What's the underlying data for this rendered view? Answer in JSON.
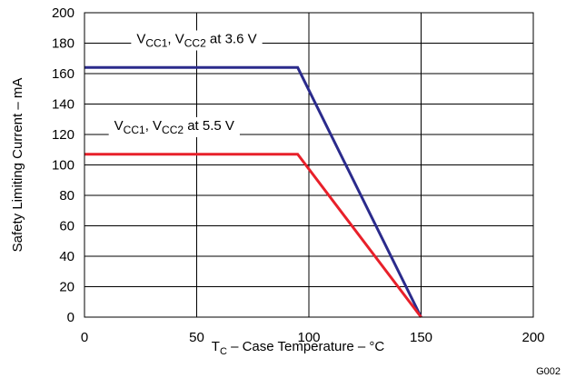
{
  "chart_data": {
    "type": "line",
    "xlabel": {
      "main": "T",
      "sub": "C",
      "rest": " – Case Temperature – °C"
    },
    "ylabel": "Safety Limiting Current – mA",
    "xlim": [
      0,
      200
    ],
    "ylim": [
      0,
      200
    ],
    "xticks": [
      0,
      50,
      100,
      150,
      200
    ],
    "yticks": [
      0,
      20,
      40,
      60,
      80,
      100,
      120,
      140,
      160,
      180,
      200
    ],
    "grid": true,
    "series": [
      {
        "color": "#2b2b8c",
        "points": [
          [
            0,
            164
          ],
          [
            95,
            164
          ],
          [
            150,
            0
          ]
        ]
      },
      {
        "color": "#e8202a",
        "points": [
          [
            0,
            107
          ],
          [
            95,
            107
          ],
          [
            150,
            0
          ]
        ]
      }
    ],
    "annotations": [
      {
        "parts": [
          [
            "V",
            "n"
          ],
          [
            "CC1",
            "s"
          ],
          [
            ", V",
            "n"
          ],
          [
            "CC2",
            "s"
          ],
          [
            " at 3.6 V",
            "n"
          ]
        ],
        "at": [
          50,
          180
        ]
      },
      {
        "parts": [
          [
            "V",
            "n"
          ],
          [
            "CC1",
            "s"
          ],
          [
            ", V",
            "n"
          ],
          [
            "CC2",
            "s"
          ],
          [
            " at 5.5 V",
            "n"
          ]
        ],
        "at": [
          40,
          123
        ]
      }
    ],
    "figure_id": "G002"
  }
}
